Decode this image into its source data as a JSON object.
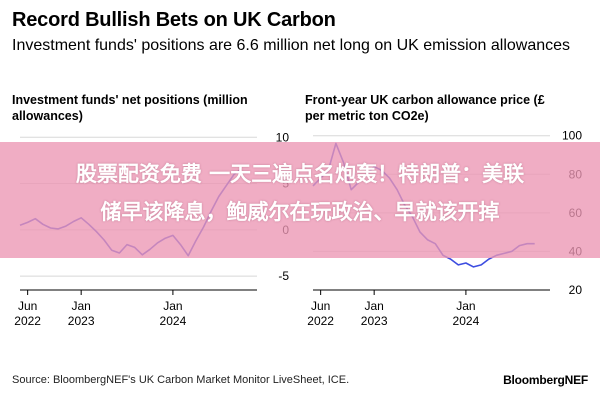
{
  "header": {
    "title": "Record Bullish Bets on UK Carbon",
    "subtitle": "Investment funds' positions are 6.6 million net long on UK emission allowances"
  },
  "chart_data": [
    {
      "type": "line",
      "title": "Investment funds' net positions (million allowances)",
      "xlabel": "",
      "ylabel": "",
      "x_tick_labels": [
        {
          "line1": "Jun",
          "line2": "2022",
          "date": "2022-06"
        },
        {
          "line1": "Jan",
          "line2": "2023",
          "date": "2023-01"
        },
        {
          "line1": "Jan",
          "line2": "2024",
          "date": "2024-01"
        }
      ],
      "y_ticks": [
        10,
        5,
        0,
        -5
      ],
      "ylim": [
        -6.5,
        11
      ],
      "x_range": [
        "2022-05",
        "2024-12"
      ],
      "grid": true,
      "series": [
        {
          "color": "#3d4de0",
          "points": [
            [
              "2022-05",
              0.5
            ],
            [
              "2022-06",
              0.8
            ],
            [
              "2022-07",
              1.2
            ],
            [
              "2022-08",
              0.6
            ],
            [
              "2022-09",
              0.2
            ],
            [
              "2022-10",
              0.1
            ],
            [
              "2022-11",
              0.4
            ],
            [
              "2022-12",
              0.9
            ],
            [
              "2023-01",
              1.3
            ],
            [
              "2023-02",
              0.6
            ],
            [
              "2023-03",
              -0.2
            ],
            [
              "2023-04",
              -1.1
            ],
            [
              "2023-05",
              -2.2
            ],
            [
              "2023-06",
              -2.5
            ],
            [
              "2023-07",
              -1.6
            ],
            [
              "2023-08",
              -1.9
            ],
            [
              "2023-09",
              -2.7
            ],
            [
              "2023-10",
              -2.1
            ],
            [
              "2023-11",
              -1.4
            ],
            [
              "2023-12",
              -0.9
            ],
            [
              "2024-01",
              -0.6
            ],
            [
              "2024-02",
              -1.6
            ],
            [
              "2024-03",
              -2.8
            ],
            [
              "2024-04",
              -1.2
            ],
            [
              "2024-05",
              0.3
            ],
            [
              "2024-06",
              2.0
            ],
            [
              "2024-07",
              3.6
            ],
            [
              "2024-08",
              4.8
            ],
            [
              "2024-09",
              6.0
            ],
            [
              "2024-10",
              6.6
            ]
          ]
        }
      ]
    },
    {
      "type": "line",
      "title": "Front-year UK carbon allowance price (£ per metric ton CO2e)",
      "xlabel": "",
      "ylabel": "",
      "x_tick_labels": [
        {
          "line1": "Jun",
          "line2": "2022",
          "date": "2022-06"
        },
        {
          "line1": "Jan",
          "line2": "2023",
          "date": "2023-01"
        },
        {
          "line1": "Jan",
          "line2": "2024",
          "date": "2024-01"
        }
      ],
      "y_ticks": [
        100,
        80,
        60,
        40,
        20
      ],
      "ylim": [
        20,
        104
      ],
      "x_range": [
        "2022-05",
        "2024-12"
      ],
      "grid": true,
      "series": [
        {
          "color": "#3d4de0",
          "points": [
            [
              "2022-05",
              74
            ],
            [
              "2022-06",
              78
            ],
            [
              "2022-07",
              82
            ],
            [
              "2022-08",
              96
            ],
            [
              "2022-09",
              86
            ],
            [
              "2022-10",
              72
            ],
            [
              "2022-11",
              76
            ],
            [
              "2022-12",
              80
            ],
            [
              "2023-01",
              84
            ],
            [
              "2023-02",
              82
            ],
            [
              "2023-03",
              78
            ],
            [
              "2023-04",
              72
            ],
            [
              "2023-05",
              64
            ],
            [
              "2023-06",
              58
            ],
            [
              "2023-07",
              50
            ],
            [
              "2023-08",
              46
            ],
            [
              "2023-09",
              44
            ],
            [
              "2023-10",
              38
            ],
            [
              "2023-11",
              36
            ],
            [
              "2023-12",
              33
            ],
            [
              "2024-01",
              34
            ],
            [
              "2024-02",
              32
            ],
            [
              "2024-03",
              33
            ],
            [
              "2024-04",
              36
            ],
            [
              "2024-05",
              38
            ],
            [
              "2024-06",
              39
            ],
            [
              "2024-07",
              40
            ],
            [
              "2024-08",
              43
            ],
            [
              "2024-09",
              44
            ],
            [
              "2024-10",
              44
            ]
          ]
        }
      ]
    }
  ],
  "overlay": {
    "line1": "股票配资免费 一天三遍点名炮轰！特朗普：美联",
    "line2": "储早该降息，鲍威尔在玩政治、早就该开掉"
  },
  "footer": {
    "source": "Source: BloombergNEF's UK Carbon Market Monitor LiveSheet, ICE.",
    "brand": "BloombergNEF"
  }
}
